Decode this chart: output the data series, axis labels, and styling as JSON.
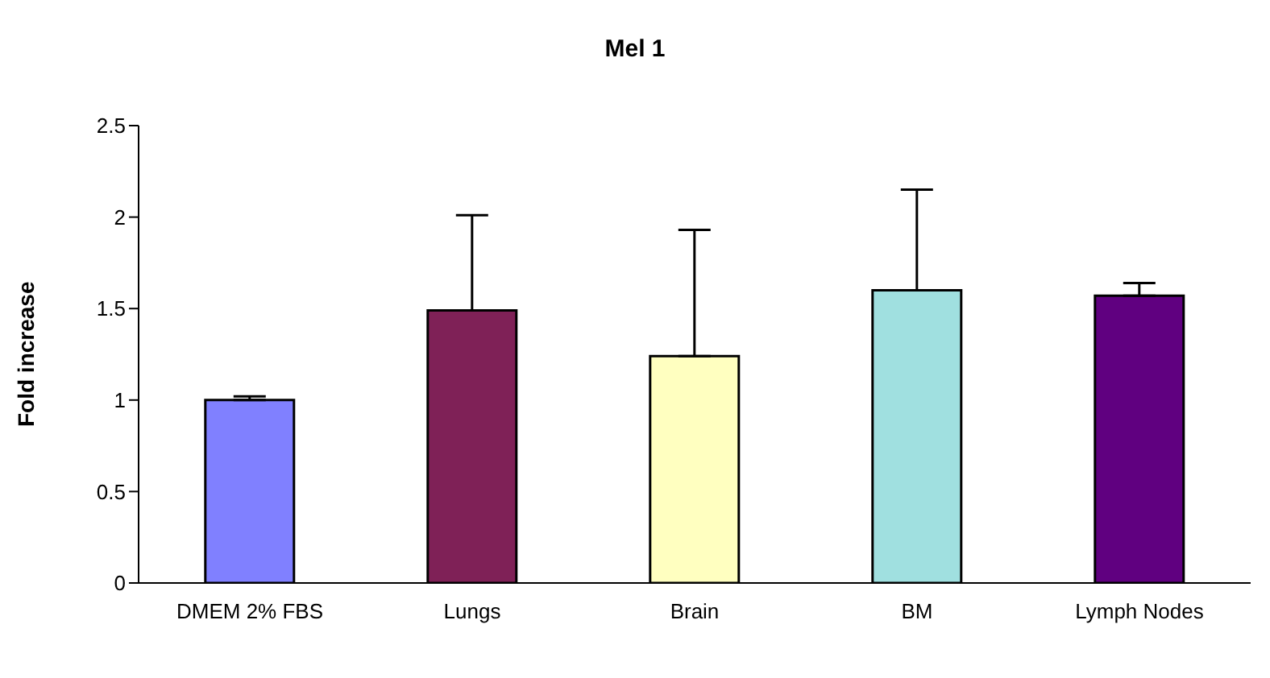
{
  "chart_data": {
    "type": "bar",
    "title": "Mel 1",
    "ylabel": "Fold increase",
    "categories": [
      "DMEM 2% FBS",
      "Lungs",
      "Brain",
      "BM",
      "Lymph Nodes"
    ],
    "values": [
      1.0,
      1.49,
      1.24,
      1.6,
      1.57
    ],
    "colors": [
      "#8080ff",
      "#7f2157",
      "#ffffc0",
      "#a0e0e0",
      "#600080"
    ],
    "errors": [
      [
        1.0,
        1.02
      ],
      [
        1.49,
        2.01
      ],
      [
        1.24,
        1.93
      ],
      [
        1.6,
        2.15
      ],
      [
        1.57,
        1.64
      ]
    ],
    "ylim": [
      0,
      2.5
    ],
    "yticks": [
      0,
      0.5,
      1,
      1.5,
      2,
      2.5
    ],
    "grid": false,
    "legend": false
  }
}
